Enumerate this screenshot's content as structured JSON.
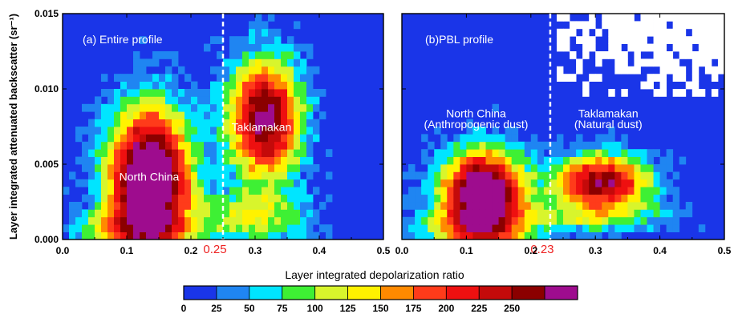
{
  "chart_data": [
    {
      "type": "heatmap",
      "panel_label": "(a) Entire profile",
      "xlabel": "Layer integrated depolarization ratio",
      "ylabel": "Layer integrated attenuated backscatter (sr⁻¹)",
      "xlim": [
        0.0,
        0.5
      ],
      "ylim": [
        0.0,
        0.015
      ],
      "xticks": [
        "0.0",
        "0.1",
        "0.2",
        "0.3",
        "0.4",
        "0.5"
      ],
      "yticks": [
        "0.000",
        "0.005",
        "0.010",
        "0.015"
      ],
      "threshold": {
        "x": 0.25,
        "label": "0.25"
      },
      "annotations": [
        {
          "text": "North China",
          "x": 0.135,
          "y": 0.0039
        },
        {
          "text": "Taklamakan",
          "x": 0.31,
          "y": 0.0072
        }
      ]
    },
    {
      "type": "heatmap",
      "panel_label": "(b)PBL profile",
      "xlim": [
        0.0,
        0.5
      ],
      "ylim": [
        0.0,
        0.015
      ],
      "xticks": [
        "0.0",
        "0.1",
        "0.2",
        "0.3",
        "0.4",
        "0.5"
      ],
      "threshold": {
        "x": 0.23,
        "label": "0.23"
      },
      "annotations": [
        {
          "text": "North China",
          "x": 0.115,
          "y": 0.0081
        },
        {
          "text": "(Anthropogenic dust)",
          "x": 0.115,
          "y": 0.0074
        },
        {
          "text": "Taklamakan",
          "x": 0.32,
          "y": 0.0081
        },
        {
          "text": "(Natural dust)",
          "x": 0.32,
          "y": 0.0074
        }
      ]
    }
  ],
  "colorbar": {
    "labels": [
      "0",
      "25",
      "50",
      "75",
      "100",
      "125",
      "150",
      "175",
      "200",
      "225",
      "250"
    ],
    "colors": [
      "#1a35e8",
      "#1f85f2",
      "#00e5ff",
      "#3ef034",
      "#d8f52c",
      "#fff200",
      "#ff8a00",
      "#ff3b1a",
      "#ee1010",
      "#c40a0a",
      "#8b0000",
      "#9e0c8e"
    ]
  }
}
